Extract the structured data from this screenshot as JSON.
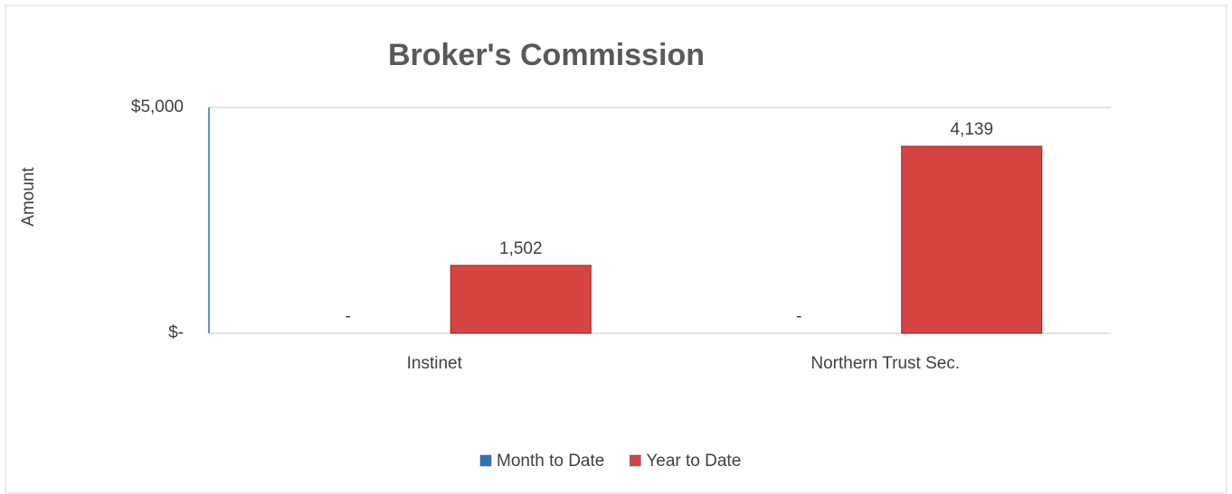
{
  "chart_data": {
    "type": "bar",
    "title": "Broker's Commission",
    "y_label": "Amount",
    "categories": [
      "Instinet",
      "Northern Trust Sec."
    ],
    "series": [
      {
        "name": "Month to Date",
        "color": "#2e75b6",
        "values": [
          0,
          0
        ],
        "value_labels": [
          "-",
          "-"
        ]
      },
      {
        "name": "Year to Date",
        "color": "#d64541",
        "values": [
          1502,
          4139
        ],
        "value_labels": [
          "1,502",
          "4,139"
        ]
      }
    ],
    "ylim": [
      0,
      5000
    ],
    "yticks": [
      {
        "value": 0,
        "label": "$-"
      },
      {
        "value": 5000,
        "label": "$5,000"
      }
    ],
    "grid": true,
    "legend": "bottom"
  }
}
